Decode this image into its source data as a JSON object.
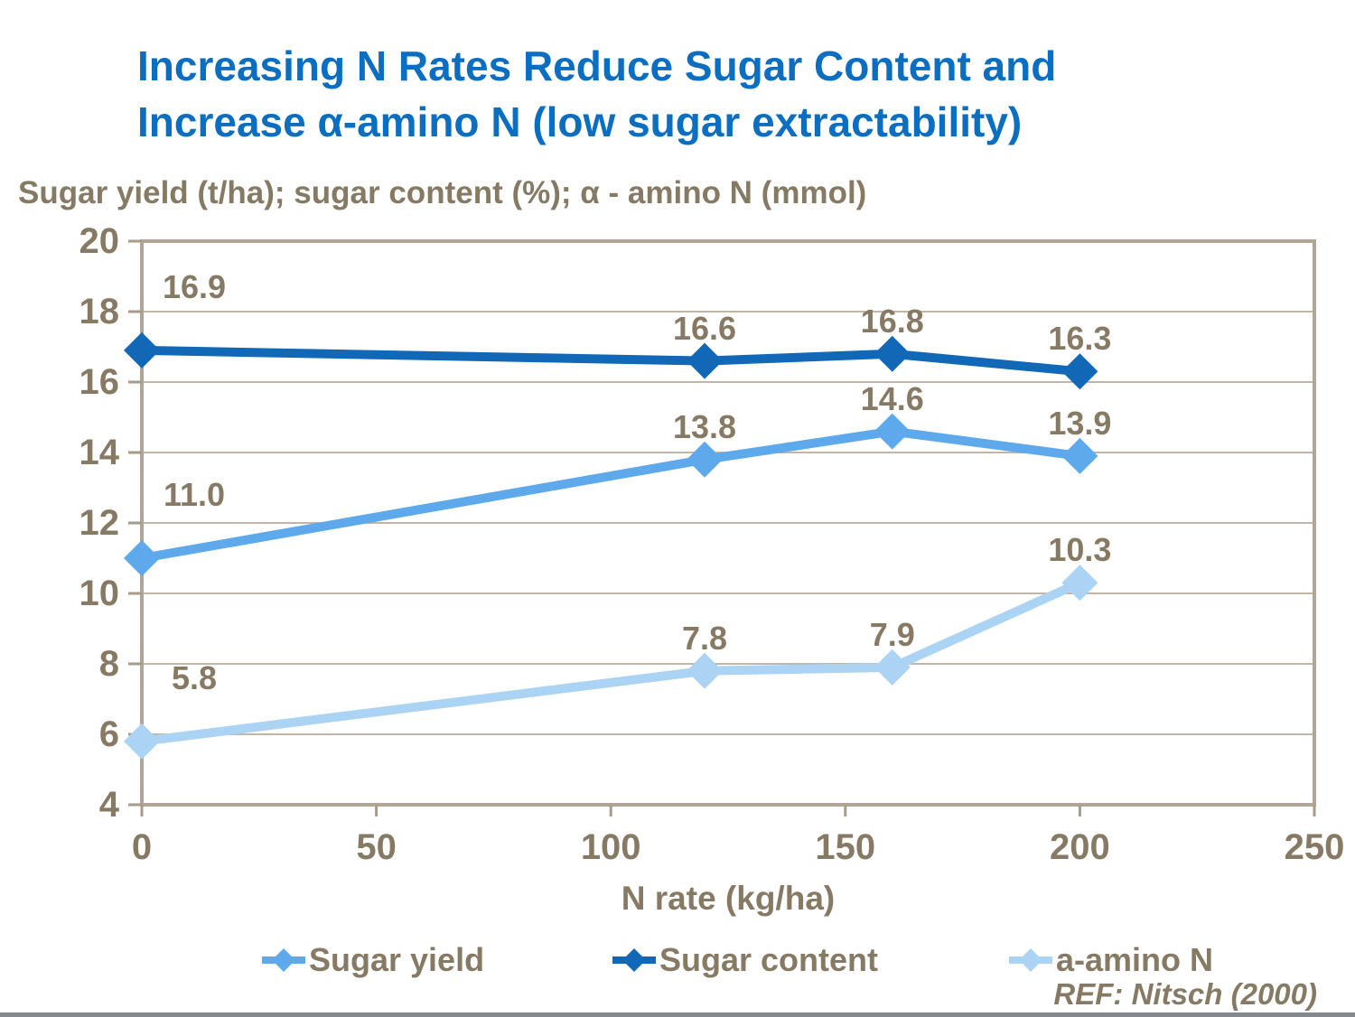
{
  "title": {
    "line1": "Increasing N Rates Reduce Sugar Content and",
    "line2": "Increase α-amino N (low sugar extractability)"
  },
  "subtitle": "Sugar yield (t/ha); sugar content (%); α - amino N (mmol)",
  "ref_citation": "REF: Nitsch (2000)",
  "colors": {
    "title_blue": "#0B6EC1",
    "text_brown": "#877A64",
    "gridline": "#C0B5A6",
    "plot_border": "#B1A596",
    "axis_tick": "#A89B8A",
    "bottom_bar": "#83878E",
    "sugar_yield": "#5EA9EC",
    "sugar_content": "#1068B6",
    "a_amino_n": "#ABD3F3"
  },
  "chart_data": {
    "type": "line",
    "x": [
      0,
      120,
      160,
      200
    ],
    "series": [
      {
        "name": "Sugar yield",
        "values": [
          11.0,
          13.8,
          14.6,
          13.9
        ],
        "labels": [
          "11.0",
          "13.8",
          "14.6",
          "13.9"
        ],
        "color": "#5EA9EC"
      },
      {
        "name": "Sugar content",
        "values": [
          16.9,
          16.6,
          16.8,
          16.3
        ],
        "labels": [
          "16.9",
          "16.6",
          "16.8",
          "16.3"
        ],
        "color": "#1068B6"
      },
      {
        "name": "a-amino N",
        "values": [
          5.8,
          7.8,
          7.9,
          10.3
        ],
        "labels": [
          "5.8",
          "7.8",
          "7.9",
          "10.3"
        ],
        "color": "#ABD3F3"
      }
    ],
    "xlabel": "N rate (kg/ha)",
    "ylabel": "Sugar yield (t/ha); sugar content (%); α - amino N (mmol)",
    "xlim": [
      0,
      250
    ],
    "ylim": [
      4,
      20
    ],
    "xticks": [
      0,
      50,
      100,
      150,
      200,
      250
    ],
    "yticks": [
      20,
      18,
      16,
      14,
      12,
      10,
      8,
      6,
      4
    ],
    "grid": true,
    "legend_position": "bottom",
    "marker": "diamond"
  }
}
